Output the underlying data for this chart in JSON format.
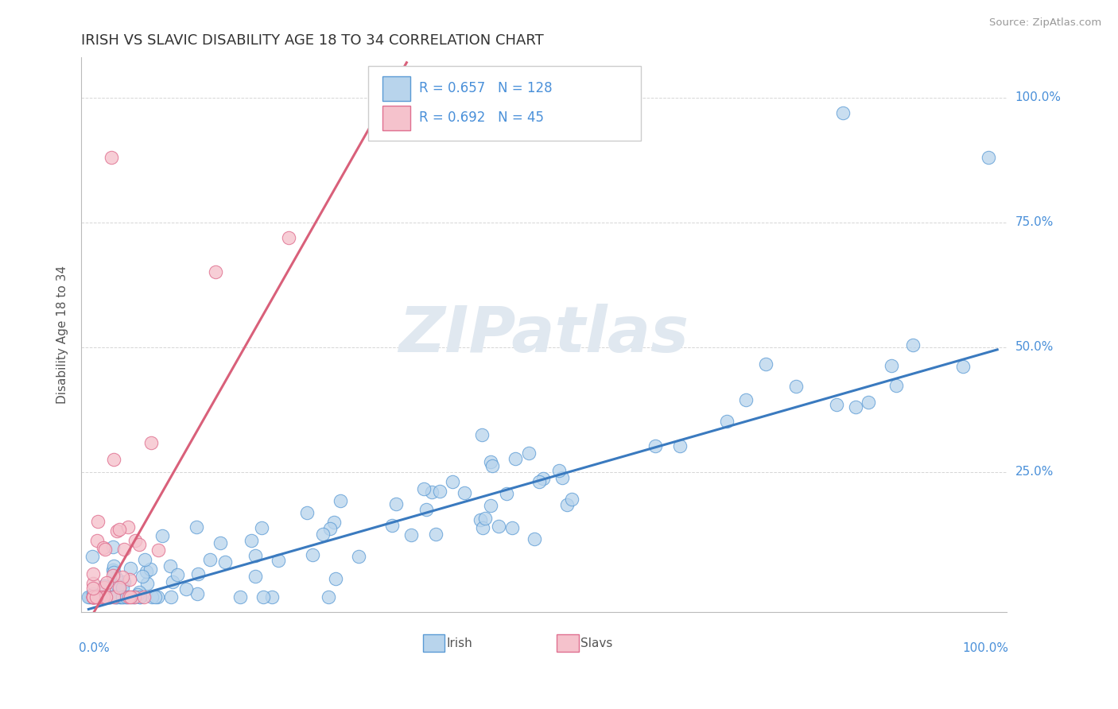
{
  "title": "IRISH VS SLAVIC DISABILITY AGE 18 TO 34 CORRELATION CHART",
  "source": "Source: ZipAtlas.com",
  "ylabel": "Disability Age 18 to 34",
  "ytick_labels": [
    "25.0%",
    "50.0%",
    "75.0%",
    "100.0%"
  ],
  "r_irish": 0.657,
  "n_irish": 128,
  "r_slavs": 0.692,
  "n_slavs": 45,
  "irish_fill_color": "#b8d4ec",
  "irish_edge_color": "#5b9bd5",
  "slavs_fill_color": "#f5c2cc",
  "slavs_edge_color": "#e07090",
  "irish_line_color": "#3a7abf",
  "slavs_line_color": "#d9607a",
  "background_color": "#ffffff",
  "watermark_color": "#e0e8f0",
  "title_color": "#333333",
  "axis_label_color": "#4a90d9",
  "grid_color": "#cccccc",
  "source_color": "#999999",
  "ylabel_color": "#555555",
  "legend_edge_color": "#cccccc",
  "bottom_label_color": "#555555",
  "irish_legend_label": "Irish",
  "slavs_legend_label": "Slavs",
  "irish_slope": 0.52,
  "irish_intercept": -0.025,
  "slavs_slope": 3.2,
  "slavs_intercept": -0.05,
  "xlim": [
    -0.008,
    1.01
  ],
  "ylim": [
    -0.03,
    1.08
  ]
}
